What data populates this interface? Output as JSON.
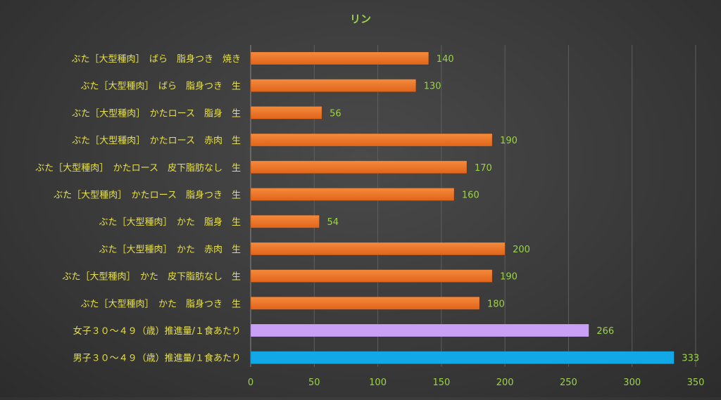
{
  "chart_data": {
    "type": "bar",
    "orientation": "horizontal",
    "title": "リン",
    "xlabel": "",
    "ylabel": "",
    "xlim": [
      0,
      350
    ],
    "x_ticks": [
      0,
      50,
      100,
      150,
      200,
      250,
      300,
      350
    ],
    "grid": "vertical",
    "legend": "none",
    "categories": [
      "ぶた［大型種肉］　ばら　脂身つき　焼き",
      "ぶた［大型種肉］　ばら　脂身つき　生",
      "ぶた［大型種肉］　かたロース　脂身　生",
      "ぶた［大型種肉］　かたロース　赤肉　生",
      "ぶた［大型種肉］　かたロース　皮下脂肪なし　生",
      "ぶた［大型種肉］　かたロース　脂身つき　生",
      "ぶた［大型種肉］　かた　脂身　生",
      "ぶた［大型種肉］　かた　赤肉　生",
      "ぶた［大型種肉］　かた　皮下脂肪なし　生",
      "ぶた［大型種肉］　かた　脂身つき　生",
      "女子３０～４９（歳）推進量/１食あたり",
      "男子３０～４９（歳）推進量/１食あたり"
    ],
    "values": [
      140,
      130,
      56,
      190,
      170,
      160,
      54,
      200,
      190,
      180,
      266,
      333
    ],
    "bar_colors": [
      "#f07a2a",
      "#f07a2a",
      "#f07a2a",
      "#f07a2a",
      "#f07a2a",
      "#f07a2a",
      "#f07a2a",
      "#f07a2a",
      "#f07a2a",
      "#f07a2a",
      "#c9a0f5",
      "#12a8e8"
    ]
  },
  "colors": {
    "title": "#9bd34a",
    "category_label": "#e6e04a",
    "value_label": "#9bd34a",
    "tick_label": "#9bd34a",
    "grid": "#5e5e5e",
    "axis": "#8a8a8a"
  }
}
